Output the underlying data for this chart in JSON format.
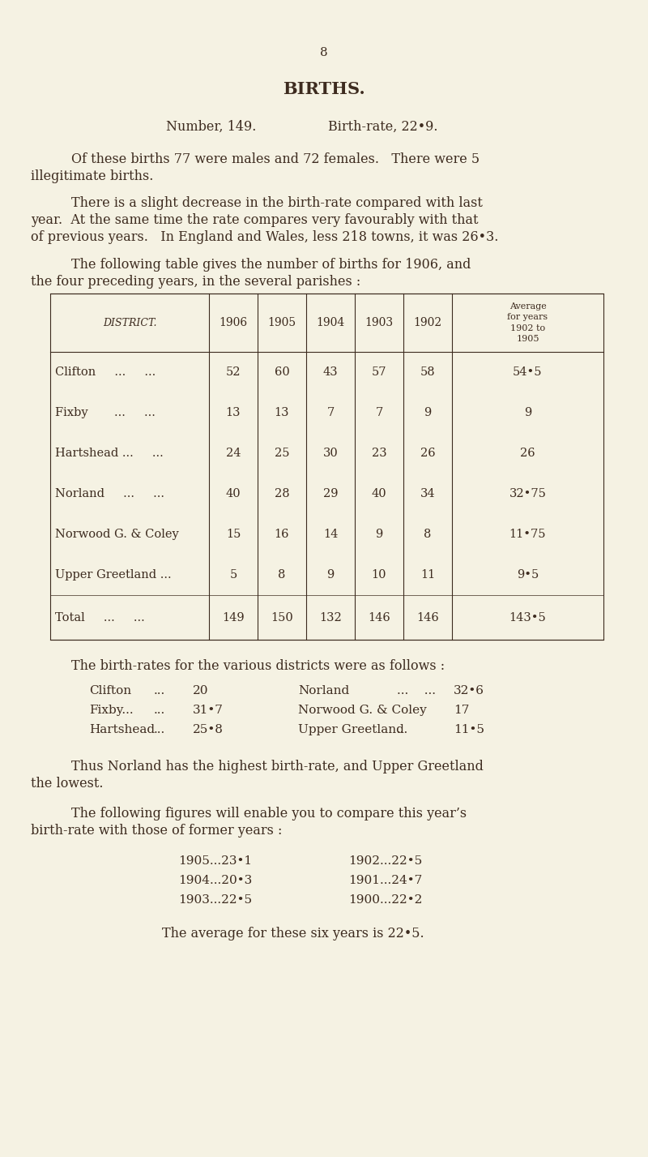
{
  "bg_color": "#f5f2e3",
  "text_color": "#3d2b1f",
  "page_number": "8",
  "title": "BIRTHS.",
  "sub_left": "Number, 149.",
  "sub_right": "Birth-rate, 22•9.",
  "para1_indent": "Of these births 77 were males and 72 females.   There were 5",
  "para1_cont": "illegitimate births.",
  "para2_indent": "There is a slight decrease in the birth-rate compared with last",
  "para2_line2": "year.  At the same time the rate compares very favourably with that",
  "para2_line3": "of previous years.   In England and Wales, less 218 towns, it was 26•3.",
  "para3_indent": "The following table gives the number of births for 1906, and",
  "para3_line2": "the four preceding years, in the several parishes :",
  "table_header": [
    "DISTRICT.",
    "1906",
    "1905",
    "1904",
    "1903",
    "1902",
    "Average\nfor years\n1902 to\n1905"
  ],
  "table_rows": [
    [
      "Clifton     ...     ...",
      "52",
      "60",
      "43",
      "57",
      "58",
      "54•5"
    ],
    [
      "Fixby       ...     ...",
      "13",
      "13",
      "7",
      "7",
      "9",
      "9"
    ],
    [
      "Hartshead ...     ...",
      "24",
      "25",
      "30",
      "23",
      "26",
      "26"
    ],
    [
      "Norland     ...     ...",
      "40",
      "28",
      "29",
      "40",
      "34",
      "32•75"
    ],
    [
      "Norwood G. & Coley",
      "15",
      "16",
      "14",
      "9",
      "8",
      "11•75"
    ],
    [
      "Upper Greetland ...",
      "5",
      "8",
      "9",
      "10",
      "11",
      "9•5"
    ]
  ],
  "table_total": [
    "Total     ...     ...",
    "149",
    "150",
    "132",
    "146",
    "146",
    "143•5"
  ],
  "para4": "The birth-rates for the various districts were as follows :",
  "br_left_labels": [
    "Clifton",
    "Fixby...",
    "Hartshead"
  ],
  "br_left_dots": [
    "...",
    "...",
    "..."
  ],
  "br_left_vals": [
    "20",
    "31•7",
    "25•8"
  ],
  "br_right_labels": [
    "Norland",
    "Norwood G. & Coley",
    "Upper Greetland"
  ],
  "br_right_dots": [
    "...    ...",
    "",
    "..."
  ],
  "br_right_vals": [
    "32•6",
    "17",
    "11•5"
  ],
  "para5_indent": "Thus Norland has the highest birth-rate, and Upper Greetland",
  "para5_cont": "the lowest.",
  "para6_indent": "The following figures will enable you to compare this year’s",
  "para6_cont": "birth-rate with those of former years :",
  "historical_left": [
    "1905...23•1",
    "1904...20•3",
    "1903...22•5"
  ],
  "historical_right": [
    "1902...22•5",
    "1901...24•7",
    "1900...22•2"
  ],
  "para7": "The average for these six years is 22•5."
}
